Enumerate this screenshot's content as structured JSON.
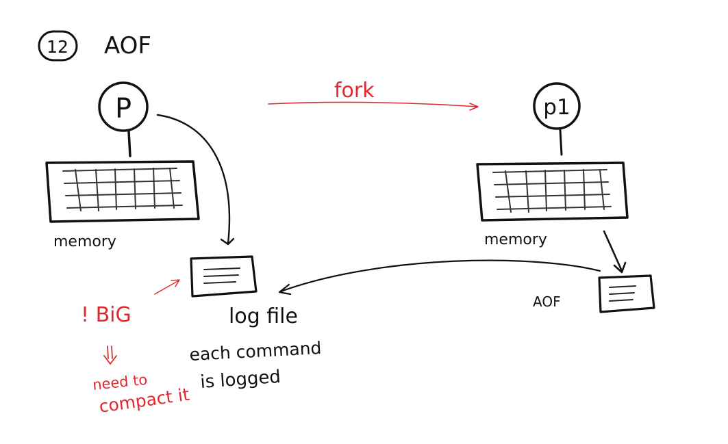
{
  "section": {
    "number": "12",
    "title": "AOF"
  },
  "arrow_fork_label": "fork",
  "parent_process": {
    "label": "P",
    "memory_label": "memory"
  },
  "child_process": {
    "label": "p1",
    "memory_label": "memory",
    "file_label": "AOF"
  },
  "log_file": {
    "label": "log file",
    "note_line1": "each command",
    "note_line2": "is logged"
  },
  "warning": {
    "label": "! BiG",
    "line1": "need to",
    "line2": "compact it"
  },
  "colors": {
    "ink": "#111111",
    "red": "#e0282e",
    "gray": "#555555"
  }
}
